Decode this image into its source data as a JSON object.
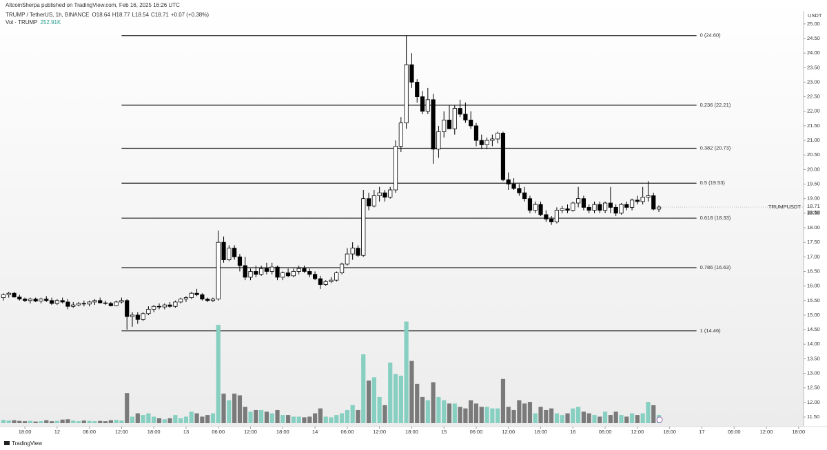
{
  "chart_data": {
    "type": "candlestick",
    "header": {
      "publisher": "AltcoinSherpa published on TradingView.com, Feb 16, 2025 16:26 UTC",
      "symbol": "TRUMP / TetherUS, 1h, BINANCE",
      "ohlc": [
        "O18.64",
        "H18.77",
        "L18.54",
        "C18.71",
        "+0.07 (+0.38%)"
      ],
      "volume_title": "Vol · TRUMP",
      "volume_value": "252.91K"
    },
    "currency": "USDT",
    "price_tag": {
      "symbol": "TRUMPUSDT",
      "countdown": "33:58"
    },
    "footer": "TradingView",
    "up_color": "#ffffff",
    "down_color": "#000000",
    "volume_up_color": "#86cfc1",
    "volume_down_color": "#7a7a7a",
    "xlim": [
      -0.5,
      148.8
    ],
    "ylim": [
      11.17,
      25.35
    ],
    "xticks": [
      {
        "value": 4,
        "label": "18:00"
      },
      {
        "value": 10,
        "label": "12"
      },
      {
        "value": 16,
        "label": "06:00"
      },
      {
        "value": 22,
        "label": "12:00"
      },
      {
        "value": 28,
        "label": "18:00"
      },
      {
        "value": 34,
        "label": "13"
      },
      {
        "value": 40,
        "label": "06:00"
      },
      {
        "value": 46,
        "label": "12:00"
      },
      {
        "value": 52,
        "label": "18:00"
      },
      {
        "value": 58,
        "label": "14"
      },
      {
        "value": 64,
        "label": "06:00"
      },
      {
        "value": 70,
        "label": "12:00"
      },
      {
        "value": 76,
        "label": "18:00"
      },
      {
        "value": 82,
        "label": "15"
      },
      {
        "value": 88,
        "label": "06:00"
      },
      {
        "value": 94,
        "label": "12:00"
      },
      {
        "value": 100,
        "label": "18:00"
      },
      {
        "value": 106,
        "label": "16"
      },
      {
        "value": 112,
        "label": "06:00"
      },
      {
        "value": 118,
        "label": "12:00"
      },
      {
        "value": 124,
        "label": "18:00"
      },
      {
        "value": 130,
        "label": "17"
      },
      {
        "value": 136,
        "label": "06:00"
      },
      {
        "value": 142,
        "label": "12:00"
      },
      {
        "value": 148,
        "label": "18:00"
      }
    ],
    "yticks": [
      {
        "value": 11.5,
        "label": "11.50"
      },
      {
        "value": 12,
        "label": "12.00"
      },
      {
        "value": 12.5,
        "label": "12.50"
      },
      {
        "value": 13,
        "label": "13.00"
      },
      {
        "value": 13.5,
        "label": "13.50"
      },
      {
        "value": 14,
        "label": "14.00"
      },
      {
        "value": 14.5,
        "label": "14.50"
      },
      {
        "value": 15,
        "label": "15.00"
      },
      {
        "value": 15.5,
        "label": "15.50"
      },
      {
        "value": 16,
        "label": "16.00"
      },
      {
        "value": 16.5,
        "label": "16.50"
      },
      {
        "value": 17,
        "label": "17.00"
      },
      {
        "value": 17.5,
        "label": "17.50"
      },
      {
        "value": 18,
        "label": "18.00"
      },
      {
        "value": 18.5,
        "label": "18.50"
      },
      {
        "value": 19,
        "label": "19.00"
      },
      {
        "value": 19.5,
        "label": "19.50"
      },
      {
        "value": 20,
        "label": "20.00"
      },
      {
        "value": 20.5,
        "label": "20.50"
      },
      {
        "value": 21,
        "label": "21.00"
      },
      {
        "value": 21.5,
        "label": "21.50"
      },
      {
        "value": 22,
        "label": "22.00"
      },
      {
        "value": 22.5,
        "label": "22.50"
      },
      {
        "value": 23,
        "label": "23.00"
      },
      {
        "value": 23.5,
        "label": "23.50"
      },
      {
        "value": 24,
        "label": "24.00"
      },
      {
        "value": 24.5,
        "label": "24.50"
      },
      {
        "value": 25,
        "label": "25.00"
      }
    ],
    "fib_levels": [
      {
        "value": 24.6,
        "label": "0 (24.60)"
      },
      {
        "value": 22.21,
        "label": "0.236 (22.21)"
      },
      {
        "value": 20.73,
        "label": "0.382 (20.73)"
      },
      {
        "value": 19.53,
        "label": "0.5 (19.53)"
      },
      {
        "value": 18.33,
        "label": "0.618 (18.33)"
      },
      {
        "value": 16.63,
        "label": "0.786 (16.63)"
      },
      {
        "value": 14.46,
        "label": "1 (14.46)"
      }
    ],
    "fib_start": 22,
    "fib_end": 129,
    "candles": [
      [
        15.6,
        15.75,
        15.5,
        15.7,
        100
      ],
      [
        15.7,
        15.8,
        15.6,
        15.75,
        80
      ],
      [
        15.75,
        15.8,
        15.6,
        15.62,
        90
      ],
      [
        15.62,
        15.7,
        15.5,
        15.55,
        70
      ],
      [
        15.55,
        15.6,
        15.45,
        15.5,
        60
      ],
      [
        15.5,
        15.6,
        15.4,
        15.55,
        70
      ],
      [
        15.55,
        15.6,
        15.45,
        15.48,
        50
      ],
      [
        15.48,
        15.6,
        15.4,
        15.55,
        60
      ],
      [
        15.55,
        15.65,
        15.45,
        15.5,
        90
      ],
      [
        15.5,
        15.6,
        15.35,
        15.4,
        60
      ],
      [
        15.4,
        15.55,
        15.35,
        15.5,
        70
      ],
      [
        15.5,
        15.6,
        15.4,
        15.45,
        110
      ],
      [
        15.45,
        15.55,
        15.2,
        15.3,
        120
      ],
      [
        15.3,
        15.45,
        15.25,
        15.35,
        80
      ],
      [
        15.35,
        15.45,
        15.3,
        15.4,
        60
      ],
      [
        15.4,
        15.5,
        15.3,
        15.38,
        80
      ],
      [
        15.38,
        15.5,
        15.3,
        15.45,
        70
      ],
      [
        15.45,
        15.55,
        15.35,
        15.5,
        60
      ],
      [
        15.5,
        15.6,
        15.4,
        15.42,
        70
      ],
      [
        15.42,
        15.5,
        15.35,
        15.4,
        60
      ],
      [
        15.4,
        15.45,
        15.3,
        15.32,
        90
      ],
      [
        15.32,
        15.5,
        15.3,
        15.45,
        100
      ],
      [
        15.45,
        15.6,
        15.4,
        15.5,
        80
      ],
      [
        15.5,
        15.55,
        14.5,
        14.95,
        920
      ],
      [
        14.95,
        15.1,
        14.6,
        15.0,
        200
      ],
      [
        15.0,
        15.1,
        14.7,
        14.85,
        300
      ],
      [
        14.85,
        15.1,
        14.8,
        15.05,
        250
      ],
      [
        15.05,
        15.3,
        15.0,
        15.2,
        300
      ],
      [
        15.2,
        15.35,
        15.1,
        15.3,
        200
      ],
      [
        15.3,
        15.4,
        15.2,
        15.28,
        150
      ],
      [
        15.28,
        15.4,
        15.2,
        15.35,
        120
      ],
      [
        15.35,
        15.45,
        15.25,
        15.3,
        150
      ],
      [
        15.3,
        15.5,
        15.25,
        15.45,
        250
      ],
      [
        15.45,
        15.6,
        15.4,
        15.55,
        150
      ],
      [
        15.55,
        15.65,
        15.45,
        15.6,
        200
      ],
      [
        15.6,
        15.8,
        15.55,
        15.75,
        350
      ],
      [
        15.75,
        15.9,
        15.65,
        15.7,
        300
      ],
      [
        15.7,
        15.75,
        15.5,
        15.55,
        200
      ],
      [
        15.55,
        15.6,
        15.45,
        15.5,
        250
      ],
      [
        15.5,
        15.6,
        15.45,
        15.55,
        300
      ],
      [
        15.55,
        17.9,
        15.5,
        17.5,
        3000
      ],
      [
        17.5,
        17.7,
        16.8,
        16.9,
        900
      ],
      [
        16.9,
        17.4,
        16.85,
        17.3,
        700
      ],
      [
        17.3,
        17.4,
        16.9,
        17.0,
        900
      ],
      [
        17.0,
        17.1,
        16.5,
        16.7,
        850
      ],
      [
        16.7,
        17.0,
        16.2,
        16.3,
        500
      ],
      [
        16.3,
        16.6,
        16.2,
        16.5,
        350
      ],
      [
        16.5,
        16.7,
        16.3,
        16.4,
        400
      ],
      [
        16.4,
        16.7,
        16.35,
        16.6,
        400
      ],
      [
        16.6,
        16.8,
        16.4,
        16.5,
        350
      ],
      [
        16.5,
        16.8,
        16.4,
        16.65,
        300
      ],
      [
        16.65,
        16.7,
        16.2,
        16.3,
        400
      ],
      [
        16.3,
        16.5,
        16.2,
        16.45,
        250
      ],
      [
        16.45,
        16.6,
        16.3,
        16.35,
        250
      ],
      [
        16.35,
        16.6,
        16.3,
        16.5,
        200
      ],
      [
        16.5,
        16.7,
        16.4,
        16.6,
        200
      ],
      [
        16.6,
        16.7,
        16.45,
        16.5,
        180
      ],
      [
        16.5,
        16.6,
        16.3,
        16.4,
        200
      ],
      [
        16.4,
        16.5,
        16.2,
        16.25,
        300
      ],
      [
        16.25,
        16.35,
        15.9,
        16.05,
        450
      ],
      [
        16.05,
        16.2,
        16.0,
        16.15,
        200
      ],
      [
        16.15,
        16.3,
        16.1,
        16.2,
        180
      ],
      [
        16.2,
        16.5,
        16.15,
        16.45,
        250
      ],
      [
        16.45,
        16.8,
        16.4,
        16.75,
        300
      ],
      [
        16.75,
        17.3,
        16.7,
        17.1,
        400
      ],
      [
        17.1,
        17.5,
        16.9,
        17.3,
        550
      ],
      [
        17.3,
        17.4,
        17.0,
        17.05,
        400
      ],
      [
        17.05,
        19.3,
        17.0,
        19.0,
        2100
      ],
      [
        19.0,
        19.2,
        18.6,
        18.75,
        1300
      ],
      [
        18.75,
        19.3,
        18.7,
        19.1,
        1400
      ],
      [
        19.1,
        19.4,
        18.9,
        19.2,
        800
      ],
      [
        19.2,
        19.3,
        18.9,
        19.05,
        550
      ],
      [
        19.05,
        19.4,
        19.0,
        19.3,
        1850
      ],
      [
        19.3,
        21.0,
        19.2,
        20.8,
        1500
      ],
      [
        20.8,
        21.8,
        20.6,
        21.6,
        1450
      ],
      [
        21.6,
        24.6,
        21.4,
        23.6,
        3100
      ],
      [
        23.6,
        24.0,
        22.8,
        23.0,
        1900
      ],
      [
        23.0,
        23.1,
        22.3,
        22.5,
        1200
      ],
      [
        22.5,
        22.7,
        21.9,
        22.0,
        800
      ],
      [
        22.0,
        22.8,
        21.9,
        22.4,
        700
      ],
      [
        22.4,
        22.6,
        20.2,
        20.7,
        1250
      ],
      [
        20.7,
        21.5,
        20.4,
        21.3,
        800
      ],
      [
        21.3,
        22.0,
        21.1,
        21.7,
        700
      ],
      [
        21.7,
        22.2,
        21.5,
        21.4,
        600
      ],
      [
        21.4,
        22.2,
        21.2,
        22.1,
        600
      ],
      [
        22.1,
        22.4,
        21.8,
        21.9,
        500
      ],
      [
        21.9,
        22.3,
        21.6,
        21.7,
        450
      ],
      [
        21.7,
        22.0,
        21.4,
        21.5,
        700
      ],
      [
        21.5,
        21.6,
        20.8,
        21.0,
        600
      ],
      [
        21.0,
        21.2,
        20.7,
        20.85,
        500
      ],
      [
        20.85,
        21.1,
        20.7,
        21.0,
        500
      ],
      [
        21.0,
        21.2,
        20.8,
        21.05,
        450
      ],
      [
        21.05,
        21.3,
        20.9,
        21.25,
        450
      ],
      [
        21.25,
        21.3,
        19.6,
        19.65,
        1350
      ],
      [
        19.65,
        19.9,
        19.3,
        19.5,
        500
      ],
      [
        19.5,
        19.7,
        19.3,
        19.35,
        400
      ],
      [
        19.35,
        19.5,
        19.1,
        19.2,
        700
      ],
      [
        19.2,
        19.4,
        18.9,
        19.0,
        600
      ],
      [
        19.0,
        19.1,
        18.5,
        18.6,
        650
      ],
      [
        18.6,
        18.9,
        18.5,
        18.8,
        300
      ],
      [
        18.8,
        18.9,
        18.4,
        18.45,
        500
      ],
      [
        18.45,
        18.6,
        18.2,
        18.3,
        400
      ],
      [
        18.3,
        18.4,
        18.1,
        18.2,
        450
      ],
      [
        18.2,
        18.7,
        18.15,
        18.6,
        300
      ],
      [
        18.6,
        18.75,
        18.5,
        18.65,
        250
      ],
      [
        18.65,
        18.8,
        18.5,
        18.6,
        300
      ],
      [
        18.6,
        18.9,
        18.55,
        18.85,
        450
      ],
      [
        18.85,
        19.4,
        18.7,
        19.0,
        500
      ],
      [
        19.0,
        19.1,
        18.6,
        18.7,
        350
      ],
      [
        18.7,
        18.8,
        18.5,
        18.6,
        300
      ],
      [
        18.6,
        18.9,
        18.5,
        18.8,
        250
      ],
      [
        18.8,
        18.9,
        18.5,
        18.6,
        200
      ],
      [
        18.6,
        18.9,
        18.5,
        18.85,
        350
      ],
      [
        18.85,
        19.4,
        18.5,
        18.7,
        250
      ],
      [
        18.7,
        18.8,
        18.4,
        18.5,
        350
      ],
      [
        18.5,
        18.85,
        18.45,
        18.8,
        250
      ],
      [
        18.8,
        18.9,
        18.6,
        18.7,
        200
      ],
      [
        18.7,
        19.0,
        18.6,
        18.95,
        300
      ],
      [
        18.95,
        19.1,
        18.8,
        18.9,
        250
      ],
      [
        18.9,
        19.4,
        18.8,
        19.05,
        300
      ],
      [
        19.05,
        19.6,
        18.9,
        19.1,
        650
      ],
      [
        19.1,
        19.2,
        18.6,
        18.64,
        550
      ],
      [
        18.64,
        18.77,
        18.54,
        18.71,
        252.91
      ]
    ]
  }
}
